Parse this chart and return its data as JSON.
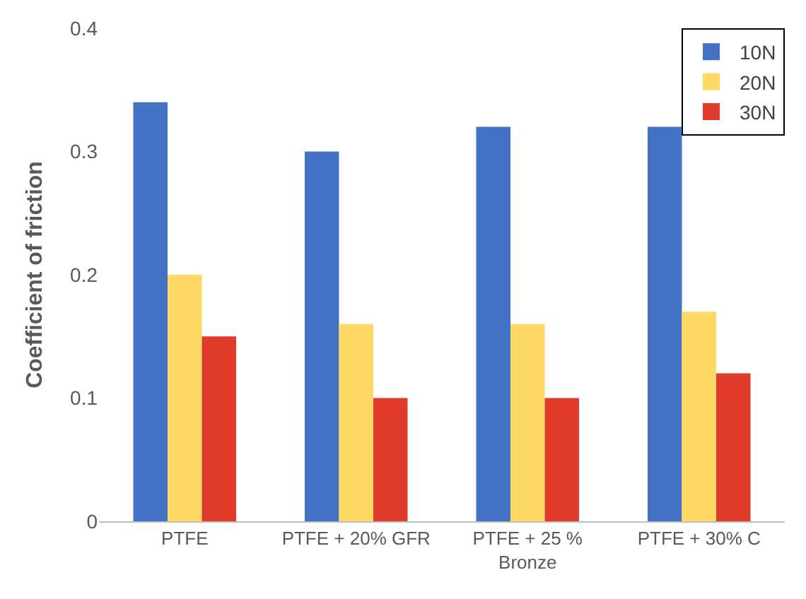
{
  "chart_data": {
    "type": "bar",
    "ylabel": "Coefficient of friction",
    "categories": [
      "PTFE",
      "PTFE + 20% GFR",
      "PTFE + 25 % Bronze",
      "PTFE + 30% C"
    ],
    "series": [
      {
        "name": "10N",
        "color": "#4472c4",
        "values": [
          0.34,
          0.3,
          0.32,
          0.32
        ]
      },
      {
        "name": "20N",
        "color": "#ffd966",
        "values": [
          0.2,
          0.16,
          0.16,
          0.17
        ]
      },
      {
        "name": "30N",
        "color": "#e03a2a",
        "values": [
          0.15,
          0.1,
          0.1,
          0.12
        ]
      }
    ],
    "ylim": [
      0,
      0.4
    ],
    "yticks": [
      0,
      0.1,
      0.2,
      0.3,
      0.4
    ],
    "grid": false,
    "legend": "top right"
  }
}
